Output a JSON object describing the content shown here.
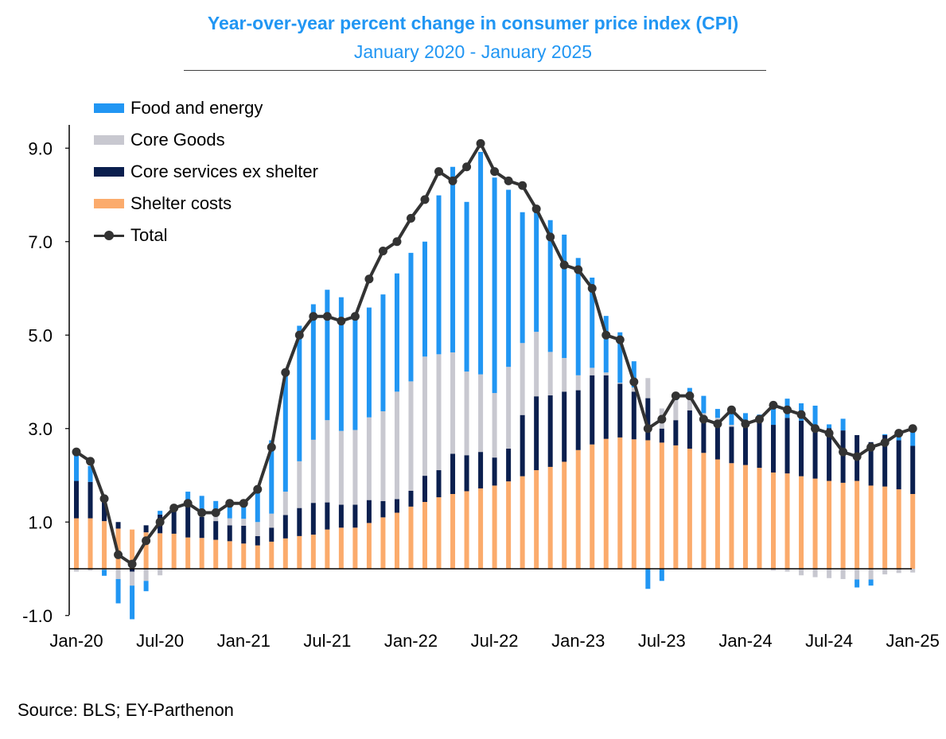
{
  "title": "Year-over-year percent change in consumer price index (CPI)",
  "subtitle": "January 2020 - January 2025",
  "source": "Source: BLS; EY-Parthenon",
  "colors": {
    "food_energy": "#2196f3",
    "core_goods": "#c8c8d0",
    "core_services_ex_shelter": "#0b1f4e",
    "shelter": "#fbab6c",
    "total": "#333333",
    "title": "#2196f3"
  },
  "chart_data": {
    "type": "bar",
    "stacked": true,
    "title": "Year-over-year percent change in consumer price index (CPI)",
    "subtitle": "January 2020 - January 2025",
    "ylim": [
      -1,
      9.5
    ],
    "y_ticks": [
      "9.0",
      "7.0",
      "5.0",
      "3.0",
      "1.0",
      "-1.0"
    ],
    "x_tick_labels": [
      "Jan-20",
      "Jul-20",
      "Jan-21",
      "Jul-21",
      "Jan-22",
      "Jul-22",
      "Jan-23",
      "Jul-23",
      "Jan-24",
      "Jul-24",
      "Jan-25"
    ],
    "legend_position": "top-left",
    "categories": [
      "2020-01",
      "2020-02",
      "2020-03",
      "2020-04",
      "2020-05",
      "2020-06",
      "2020-07",
      "2020-08",
      "2020-09",
      "2020-10",
      "2020-11",
      "2020-12",
      "2021-01",
      "2021-02",
      "2021-03",
      "2021-04",
      "2021-05",
      "2021-06",
      "2021-07",
      "2021-08",
      "2021-09",
      "2021-10",
      "2021-11",
      "2021-12",
      "2022-01",
      "2022-02",
      "2022-03",
      "2022-04",
      "2022-05",
      "2022-06",
      "2022-07",
      "2022-08",
      "2022-09",
      "2022-10",
      "2022-11",
      "2022-12",
      "2023-01",
      "2023-02",
      "2023-03",
      "2023-04",
      "2023-05",
      "2023-06",
      "2023-07",
      "2023-08",
      "2023-09",
      "2023-10",
      "2023-11",
      "2023-12",
      "2024-01",
      "2024-02",
      "2024-03",
      "2024-04",
      "2024-05",
      "2024-06",
      "2024-07",
      "2024-08",
      "2024-09",
      "2024-10",
      "2024-11",
      "2024-12",
      "2025-01"
    ],
    "series": [
      {
        "name": "Shelter costs",
        "type": "bar",
        "values": [
          1.08,
          1.08,
          1.02,
          0.86,
          0.84,
          0.78,
          0.76,
          0.75,
          0.67,
          0.66,
          0.62,
          0.59,
          0.54,
          0.5,
          0.58,
          0.65,
          0.7,
          0.73,
          0.84,
          0.88,
          0.88,
          0.98,
          1.1,
          1.2,
          1.33,
          1.43,
          1.53,
          1.6,
          1.66,
          1.72,
          1.78,
          1.87,
          1.98,
          2.11,
          2.18,
          2.29,
          2.54,
          2.66,
          2.78,
          2.81,
          2.77,
          2.75,
          2.7,
          2.64,
          2.57,
          2.48,
          2.34,
          2.26,
          2.22,
          2.16,
          2.06,
          2.04,
          1.98,
          1.93,
          1.88,
          1.84,
          1.88,
          1.78,
          1.76,
          1.7,
          1.6
        ]
      },
      {
        "name": "Core services ex shelter",
        "type": "bar",
        "values": [
          0.8,
          0.78,
          0.48,
          0.14,
          -0.06,
          0.15,
          0.4,
          0.5,
          0.65,
          0.45,
          0.4,
          0.34,
          0.38,
          0.2,
          0.3,
          0.5,
          0.6,
          0.68,
          0.58,
          0.49,
          0.49,
          0.49,
          0.35,
          0.29,
          0.34,
          0.56,
          0.58,
          0.86,
          0.77,
          0.78,
          0.6,
          0.7,
          1.31,
          1.58,
          1.53,
          1.5,
          1.28,
          1.48,
          1.36,
          1.15,
          1.02,
          0.9,
          0.3,
          0.54,
          0.82,
          0.65,
          0.74,
          0.78,
          0.88,
          0.97,
          1.02,
          1.19,
          1.19,
          1.13,
          1.13,
          1.12,
          0.98,
          0.93,
          1.1,
          1.05,
          1.03
        ]
      },
      {
        "name": "Core Goods",
        "type": "bar",
        "values": [
          -0.06,
          -0.04,
          -0.02,
          -0.22,
          -0.3,
          -0.26,
          -0.14,
          -0.02,
          0.1,
          0.13,
          0.13,
          0.15,
          0.15,
          0.3,
          0.3,
          0.5,
          1.0,
          1.35,
          1.76,
          1.58,
          1.6,
          1.77,
          1.92,
          2.3,
          2.34,
          2.55,
          2.48,
          2.17,
          1.79,
          1.66,
          1.38,
          1.75,
          1.54,
          1.38,
          0.93,
          0.72,
          0.32,
          0.16,
          0.06,
          0.02,
          0.09,
          0.43,
          0.43,
          0.43,
          0.35,
          0.2,
          0.15,
          0.04,
          0.04,
          0.02,
          -0.04,
          -0.06,
          -0.14,
          -0.18,
          -0.2,
          -0.22,
          -0.23,
          -0.23,
          -0.12,
          -0.09,
          -0.08
        ]
      },
      {
        "name": "Food and energy",
        "type": "bar",
        "values": [
          0.56,
          0.34,
          -0.13,
          -0.52,
          -0.72,
          -0.22,
          0.08,
          0.12,
          0.23,
          0.32,
          0.3,
          0.28,
          0.33,
          0.72,
          1.57,
          2.6,
          2.9,
          2.9,
          2.79,
          2.86,
          2.38,
          2.35,
          2.5,
          2.53,
          2.75,
          2.46,
          3.4,
          3.97,
          3.63,
          4.76,
          4.61,
          3.79,
          2.8,
          2.64,
          2.82,
          2.64,
          2.51,
          1.93,
          1.21,
          1.08,
          0.56,
          -0.43,
          -0.26,
          0.13,
          0.13,
          0.37,
          0.19,
          0.34,
          0.19,
          0.15,
          0.42,
          0.41,
          0.37,
          0.43,
          0.08,
          0.25,
          -0.17,
          -0.13,
          0.02,
          0.23,
          0.33
        ]
      },
      {
        "name": "Total",
        "type": "line",
        "values": [
          2.5,
          2.3,
          1.5,
          0.3,
          0.1,
          0.6,
          1.0,
          1.3,
          1.4,
          1.2,
          1.2,
          1.4,
          1.4,
          1.7,
          2.6,
          4.2,
          5.0,
          5.4,
          5.4,
          5.3,
          5.4,
          6.2,
          6.8,
          7.0,
          7.5,
          7.9,
          8.5,
          8.3,
          8.6,
          9.1,
          8.5,
          8.3,
          8.2,
          7.7,
          7.1,
          6.5,
          6.4,
          6.0,
          5.0,
          4.9,
          4.0,
          3.0,
          3.2,
          3.7,
          3.7,
          3.2,
          3.1,
          3.4,
          3.1,
          3.2,
          3.5,
          3.4,
          3.3,
          3.0,
          2.9,
          2.5,
          2.4,
          2.6,
          2.7,
          2.9,
          3.0
        ]
      }
    ]
  },
  "legend": [
    {
      "label": "Food and energy",
      "kind": "bar",
      "color": "#2196f3"
    },
    {
      "label": "Core Goods",
      "kind": "bar",
      "color": "#c8c8d0"
    },
    {
      "label": "Core services ex shelter",
      "kind": "bar",
      "color": "#0b1f4e"
    },
    {
      "label": "Shelter costs",
      "kind": "bar",
      "color": "#fbab6c"
    },
    {
      "label": "Total",
      "kind": "line",
      "color": "#333333"
    }
  ]
}
